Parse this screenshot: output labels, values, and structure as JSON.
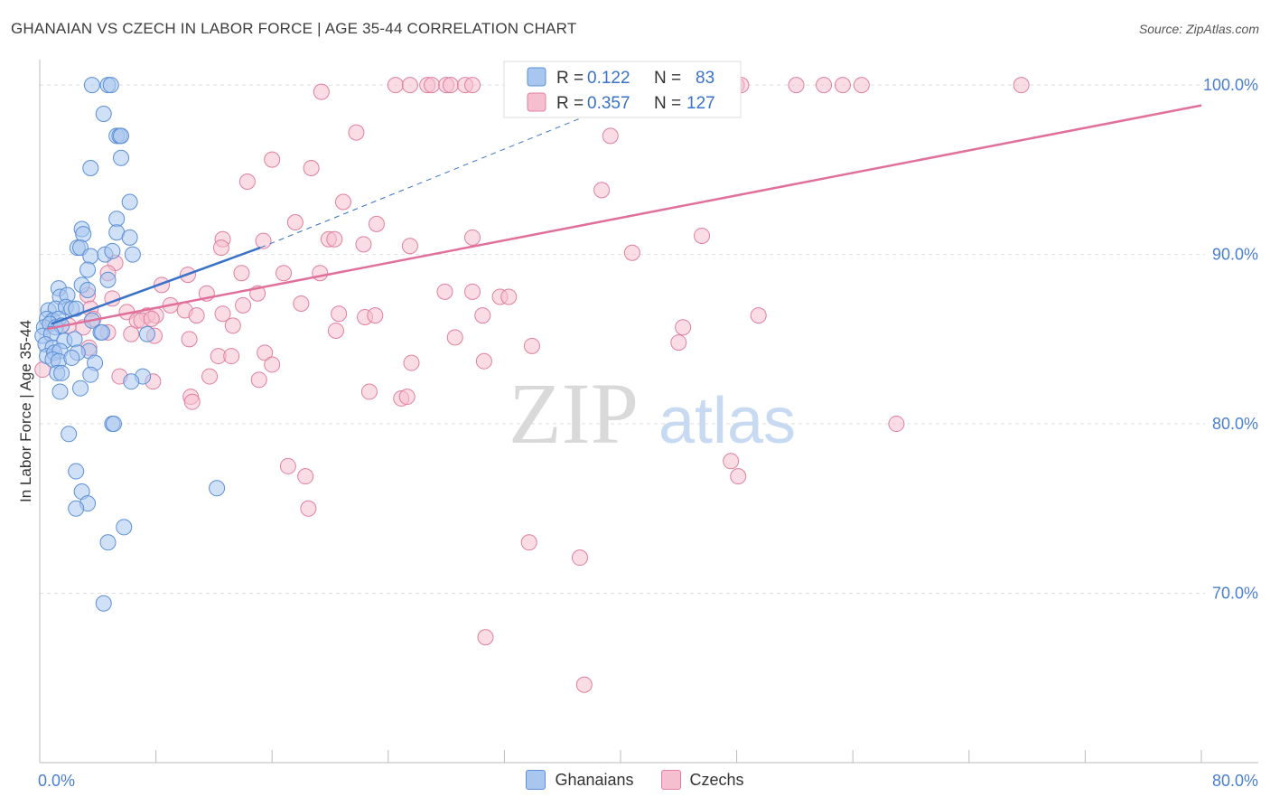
{
  "header": {
    "title": "GHANAIAN VS CZECH IN LABOR FORCE | AGE 35-44 CORRELATION CHART",
    "source": "Source: ZipAtlas.com"
  },
  "watermark": {
    "zip": "ZIP",
    "atlas": "atlas"
  },
  "colors": {
    "blue": "#5b8fd6",
    "blue_fill": "#a9c6ee",
    "blue_line": "#3a72c8",
    "pink": "#e07fa0",
    "pink_fill": "#f6bfd0",
    "pink_line": "#e0709a",
    "tick_label": "#4a7fd0",
    "grid": "#dddddd"
  },
  "chart_data": {
    "type": "scatter",
    "title": "GHANAIAN VS CZECH IN LABOR FORCE | AGE 35-44 CORRELATION CHART",
    "xlabel": "",
    "ylabel": "In Labor Force | Age 35-44",
    "xlim": [
      0,
      80
    ],
    "ylim": [
      60,
      101.5
    ],
    "x_tick_labels": [
      "0.0%",
      "80.0%"
    ],
    "y_ticks": [
      70,
      80,
      90,
      100
    ],
    "y_tick_labels": [
      "70.0%",
      "80.0%",
      "90.0%",
      "100.0%"
    ],
    "legend": [
      {
        "series": "Ghanaians",
        "r_label": "R =",
        "r_value": "0.122",
        "n_label": "N =",
        "n_value": "83"
      },
      {
        "series": "Czechs",
        "r_label": "R =",
        "r_value": "0.357",
        "n_label": "N =",
        "n_value": "127"
      }
    ],
    "series": [
      {
        "name": "Ghanaians",
        "color": "blue",
        "trend_solid": [
          [
            0.8,
            85.9
          ],
          [
            15.2,
            90.4
          ]
        ],
        "trend_dashed": [
          [
            15.2,
            90.4
          ],
          [
            38,
            98.3
          ]
        ],
        "points": [
          [
            3.6,
            100
          ],
          [
            4.7,
            100
          ],
          [
            4.9,
            100
          ],
          [
            4.4,
            98.3
          ],
          [
            5.3,
            97
          ],
          [
            5.5,
            97
          ],
          [
            5.6,
            97
          ],
          [
            5.6,
            95.7
          ],
          [
            3.5,
            95.1
          ],
          [
            6.2,
            93.1
          ],
          [
            5.3,
            92.1
          ],
          [
            2.9,
            91.5
          ],
          [
            3,
            91.2
          ],
          [
            5.3,
            91.3
          ],
          [
            6.2,
            91
          ],
          [
            2.6,
            90.4
          ],
          [
            2.8,
            90.4
          ],
          [
            3.5,
            89.9
          ],
          [
            4.5,
            90
          ],
          [
            5,
            90.2
          ],
          [
            6.4,
            90
          ],
          [
            3.3,
            89.1
          ],
          [
            4.7,
            88.5
          ],
          [
            1.3,
            88
          ],
          [
            2.9,
            88.2
          ],
          [
            1.4,
            87.5
          ],
          [
            1.9,
            87.6
          ],
          [
            3.3,
            87.9
          ],
          [
            0.6,
            86.7
          ],
          [
            1.1,
            86.8
          ],
          [
            1.8,
            86.9
          ],
          [
            2.2,
            86.8
          ],
          [
            2.5,
            86.8
          ],
          [
            0.5,
            86.2
          ],
          [
            0.9,
            86.1
          ],
          [
            1.3,
            86.2
          ],
          [
            0.3,
            85.7
          ],
          [
            0.7,
            85.9
          ],
          [
            1.1,
            85.7
          ],
          [
            1.5,
            85.8
          ],
          [
            3.6,
            86.1
          ],
          [
            0.2,
            85.2
          ],
          [
            0.8,
            85.3
          ],
          [
            4.2,
            85.4
          ],
          [
            4.3,
            85.4
          ],
          [
            7.4,
            85.3
          ],
          [
            0.4,
            84.7
          ],
          [
            0.9,
            84.5
          ],
          [
            1.7,
            84.9
          ],
          [
            2.4,
            85
          ],
          [
            3.4,
            84.3
          ],
          [
            0.5,
            84
          ],
          [
            1,
            84.2
          ],
          [
            1.4,
            84.3
          ],
          [
            2.6,
            84.2
          ],
          [
            0.9,
            83.8
          ],
          [
            1.3,
            83.7
          ],
          [
            2.2,
            83.9
          ],
          [
            3.8,
            83.6
          ],
          [
            1.2,
            83
          ],
          [
            1.5,
            83
          ],
          [
            3.5,
            82.9
          ],
          [
            7.1,
            82.8
          ],
          [
            6.3,
            82.5
          ],
          [
            1.4,
            81.9
          ],
          [
            2.8,
            82.1
          ],
          [
            5,
            80
          ],
          [
            5.1,
            80
          ],
          [
            2,
            79.4
          ],
          [
            2.5,
            77.2
          ],
          [
            2.9,
            76
          ],
          [
            3.3,
            75.3
          ],
          [
            2.5,
            75
          ],
          [
            12.2,
            76.2
          ],
          [
            5.8,
            73.9
          ],
          [
            4.7,
            73
          ],
          [
            4.4,
            69.4
          ]
        ]
      },
      {
        "name": "Czechs",
        "color": "pink",
        "trend_solid": [
          [
            0.5,
            85.6
          ],
          [
            80,
            98.8
          ]
        ],
        "points": [
          [
            24.5,
            100
          ],
          [
            25.5,
            100
          ],
          [
            26.7,
            100
          ],
          [
            27,
            100
          ],
          [
            28,
            100
          ],
          [
            28.3,
            100
          ],
          [
            29.3,
            100
          ],
          [
            29.8,
            100
          ],
          [
            32.5,
            100
          ],
          [
            33.5,
            100
          ],
          [
            34,
            100
          ],
          [
            34.8,
            100
          ],
          [
            35.2,
            100
          ],
          [
            36.5,
            100
          ],
          [
            37.2,
            100
          ],
          [
            38,
            100
          ],
          [
            39.2,
            100
          ],
          [
            43.5,
            100
          ],
          [
            44.2,
            100
          ],
          [
            48,
            100
          ],
          [
            48.3,
            100
          ],
          [
            52.1,
            100
          ],
          [
            54,
            100
          ],
          [
            55.3,
            100
          ],
          [
            56.6,
            100
          ],
          [
            67.6,
            100
          ],
          [
            19.4,
            99.6
          ],
          [
            21.8,
            97.2
          ],
          [
            39.3,
            97
          ],
          [
            16,
            95.6
          ],
          [
            18.7,
            95.1
          ],
          [
            14.3,
            94.3
          ],
          [
            38.7,
            93.8
          ],
          [
            20.9,
            93.1
          ],
          [
            17.6,
            91.9
          ],
          [
            23.2,
            91.8
          ],
          [
            12.6,
            90.9
          ],
          [
            15.4,
            90.8
          ],
          [
            19.9,
            90.9
          ],
          [
            20.3,
            90.9
          ],
          [
            22.3,
            90.6
          ],
          [
            25.5,
            90.5
          ],
          [
            29.8,
            91
          ],
          [
            45.6,
            91.1
          ],
          [
            12.5,
            90.4
          ],
          [
            40.8,
            90.1
          ],
          [
            5.2,
            89.5
          ],
          [
            4.7,
            88.9
          ],
          [
            10.2,
            88.8
          ],
          [
            13.9,
            88.9
          ],
          [
            16.8,
            88.9
          ],
          [
            19.3,
            88.9
          ],
          [
            8.4,
            88.2
          ],
          [
            27.9,
            87.8
          ],
          [
            29.8,
            87.8
          ],
          [
            31.7,
            87.5
          ],
          [
            32.3,
            87.5
          ],
          [
            3.3,
            87.6
          ],
          [
            11.5,
            87.7
          ],
          [
            15,
            87.7
          ],
          [
            5,
            87.4
          ],
          [
            18,
            87.1
          ],
          [
            9,
            87
          ],
          [
            14,
            87
          ],
          [
            3.5,
            86.8
          ],
          [
            6,
            86.6
          ],
          [
            10,
            86.7
          ],
          [
            12.6,
            86.5
          ],
          [
            7.4,
            86.4
          ],
          [
            8,
            86.4
          ],
          [
            6.7,
            86.1
          ],
          [
            7,
            86.1
          ],
          [
            3.7,
            86.2
          ],
          [
            7.7,
            86.2
          ],
          [
            10.8,
            86.4
          ],
          [
            20.6,
            86.5
          ],
          [
            22.4,
            86.3
          ],
          [
            23.1,
            86.4
          ],
          [
            30.5,
            86.4
          ],
          [
            49.5,
            86.4
          ],
          [
            2,
            85.8
          ],
          [
            3,
            85.7
          ],
          [
            13.3,
            85.8
          ],
          [
            20.4,
            85.5
          ],
          [
            44.3,
            85.7
          ],
          [
            4.7,
            85.4
          ],
          [
            6.3,
            85.3
          ],
          [
            7.9,
            85.2
          ],
          [
            28.6,
            85.1
          ],
          [
            10.3,
            85
          ],
          [
            3.4,
            84.5
          ],
          [
            33.9,
            84.6
          ],
          [
            44,
            84.8
          ],
          [
            15.5,
            84.2
          ],
          [
            12.3,
            84
          ],
          [
            13.2,
            84
          ],
          [
            16,
            83.5
          ],
          [
            25.6,
            83.6
          ],
          [
            30.6,
            83.7
          ],
          [
            5.5,
            82.8
          ],
          [
            7.8,
            82.5
          ],
          [
            11.7,
            82.8
          ],
          [
            15.1,
            82.6
          ],
          [
            22.7,
            81.9
          ],
          [
            10.4,
            81.6
          ],
          [
            24.9,
            81.5
          ],
          [
            25.3,
            81.6
          ],
          [
            10.5,
            81.3
          ],
          [
            59,
            80
          ],
          [
            47.6,
            77.8
          ],
          [
            17.1,
            77.5
          ],
          [
            18.3,
            76.9
          ],
          [
            48.1,
            76.9
          ],
          [
            18.5,
            75
          ],
          [
            33.7,
            73
          ],
          [
            37.2,
            72.1
          ],
          [
            30.7,
            67.4
          ],
          [
            37.5,
            64.6
          ],
          [
            0.2,
            83.2
          ]
        ]
      }
    ]
  },
  "bottom_legend": [
    {
      "label": "Ghanaians",
      "color": "blue"
    },
    {
      "label": "Czechs",
      "color": "pink"
    }
  ]
}
